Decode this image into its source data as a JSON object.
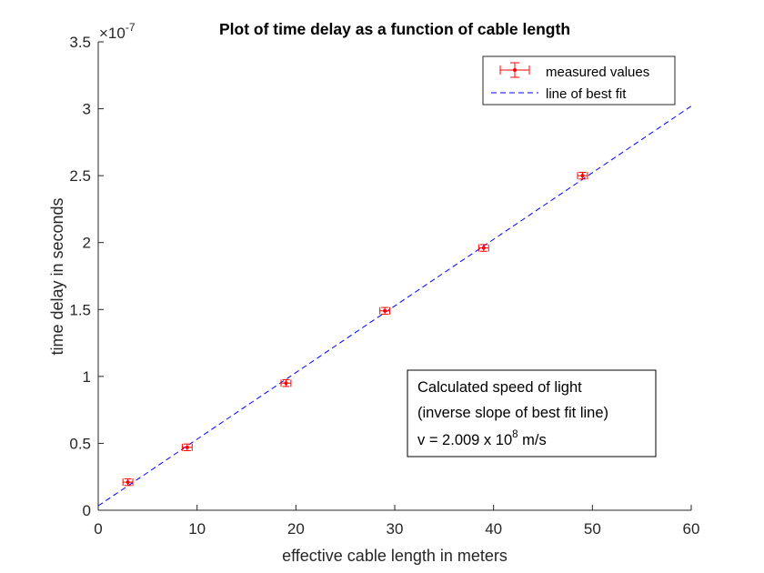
{
  "chart_data": {
    "type": "scatter",
    "title": "Plot of time delay as a function of cable length",
    "xlabel": "effective cable length in meters",
    "ylabel": "time delay in seconds",
    "xlim": [
      0,
      60
    ],
    "ylim": [
      0,
      3.5
    ],
    "y_exponent_label": "×10",
    "y_exponent_power": "-7",
    "x_ticks": [
      0,
      10,
      20,
      30,
      40,
      50,
      60
    ],
    "x_tick_labels": [
      "0",
      "10",
      "20",
      "30",
      "40",
      "50",
      "60"
    ],
    "y_ticks": [
      0,
      0.5,
      1,
      1.5,
      2,
      2.5,
      3,
      3.5
    ],
    "y_tick_labels": [
      "0",
      "0.5",
      "1",
      "1.5",
      "2",
      "2.5",
      "3",
      "3.5"
    ],
    "grid": false,
    "legend_position": "top-right",
    "series": [
      {
        "name": "measured values",
        "style": "errorbar",
        "color": "#ff0000",
        "x": [
          3,
          9,
          19,
          29,
          39,
          49
        ],
        "y": [
          0.21,
          0.47,
          0.95,
          1.49,
          1.96,
          2.5
        ],
        "y_err": [
          0.025,
          0.025,
          0.025,
          0.025,
          0.025,
          0.025
        ],
        "x_err": [
          0.5,
          0.5,
          0.5,
          0.5,
          0.5,
          0.5
        ]
      },
      {
        "name": "line of best fit",
        "style": "dashed-line",
        "color": "#0000ff",
        "x": [
          0,
          60
        ],
        "y": [
          0.033,
          3.02
        ]
      }
    ],
    "annotation": {
      "line1": "Calculated speed of light",
      "line2": "(inverse slope of best fit line)",
      "line3_prefix": "v = 2.009 x 10",
      "line3_power": "8",
      "line3_suffix": " m/s"
    }
  }
}
